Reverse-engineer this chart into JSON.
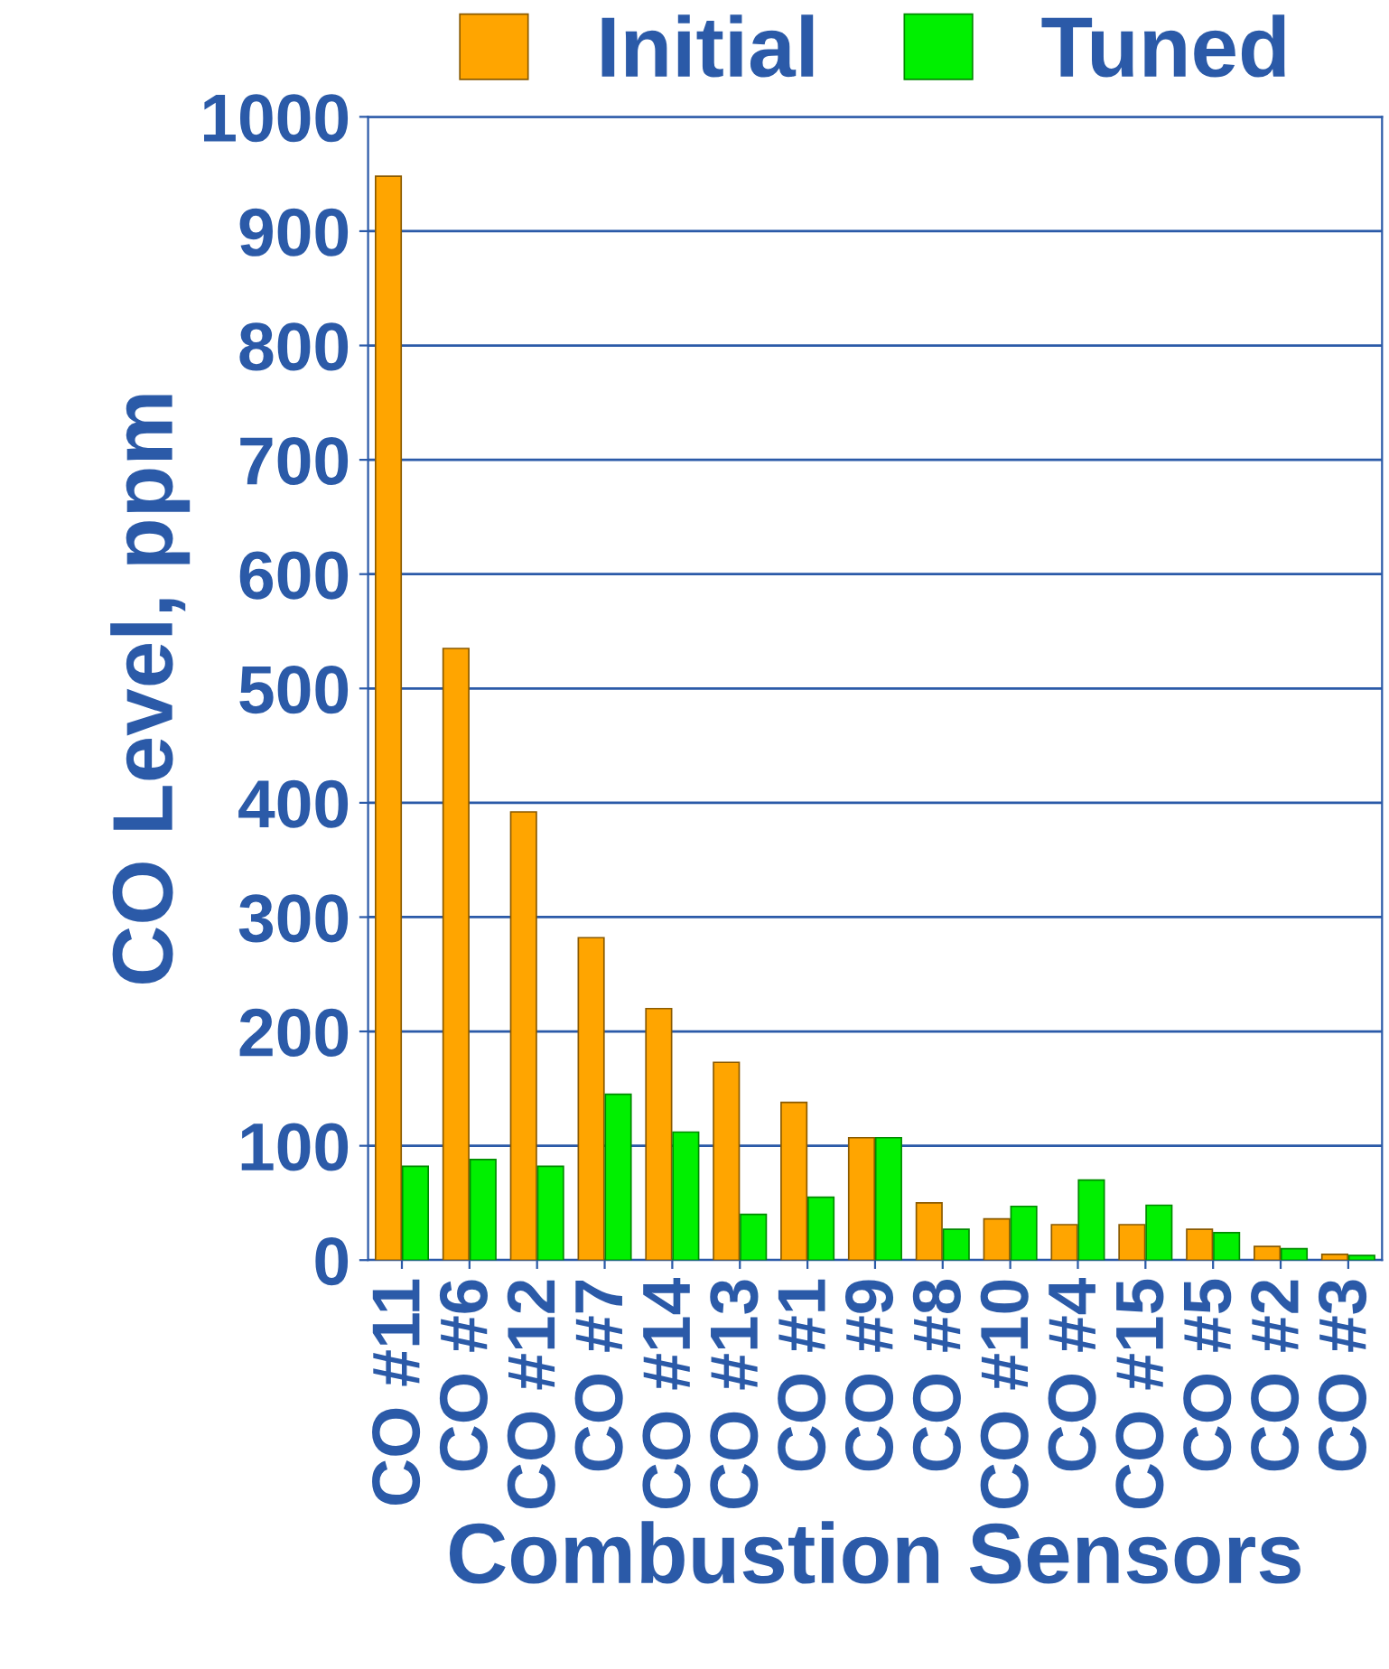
{
  "chart_data": {
    "type": "bar",
    "xlabel": "Combustion Sensors",
    "ylabel": "CO Level, ppm",
    "categories": [
      "CO #11",
      "CO #6",
      "CO #12",
      "CO #7",
      "CO #14",
      "CO #13",
      "CO #1",
      "CO #9",
      "CO #8",
      "CO #10",
      "CO #4",
      "CO #15",
      "CO #5",
      "CO #2",
      "CO #3"
    ],
    "series": [
      {
        "name": "Initial",
        "color": "#ffa500",
        "values": [
          948,
          535,
          392,
          282,
          220,
          173,
          138,
          107,
          50,
          36,
          31,
          31,
          27,
          12,
          5
        ]
      },
      {
        "name": "Tuned",
        "color": "#00f000",
        "values": [
          82,
          88,
          82,
          145,
          112,
          40,
          55,
          107,
          27,
          47,
          70,
          48,
          24,
          10,
          4
        ]
      }
    ],
    "ylim": [
      0,
      1000
    ],
    "yticks": [
      0,
      100,
      200,
      300,
      400,
      500,
      600,
      700,
      800,
      900,
      1000
    ],
    "grid": "y",
    "legend": "top"
  }
}
